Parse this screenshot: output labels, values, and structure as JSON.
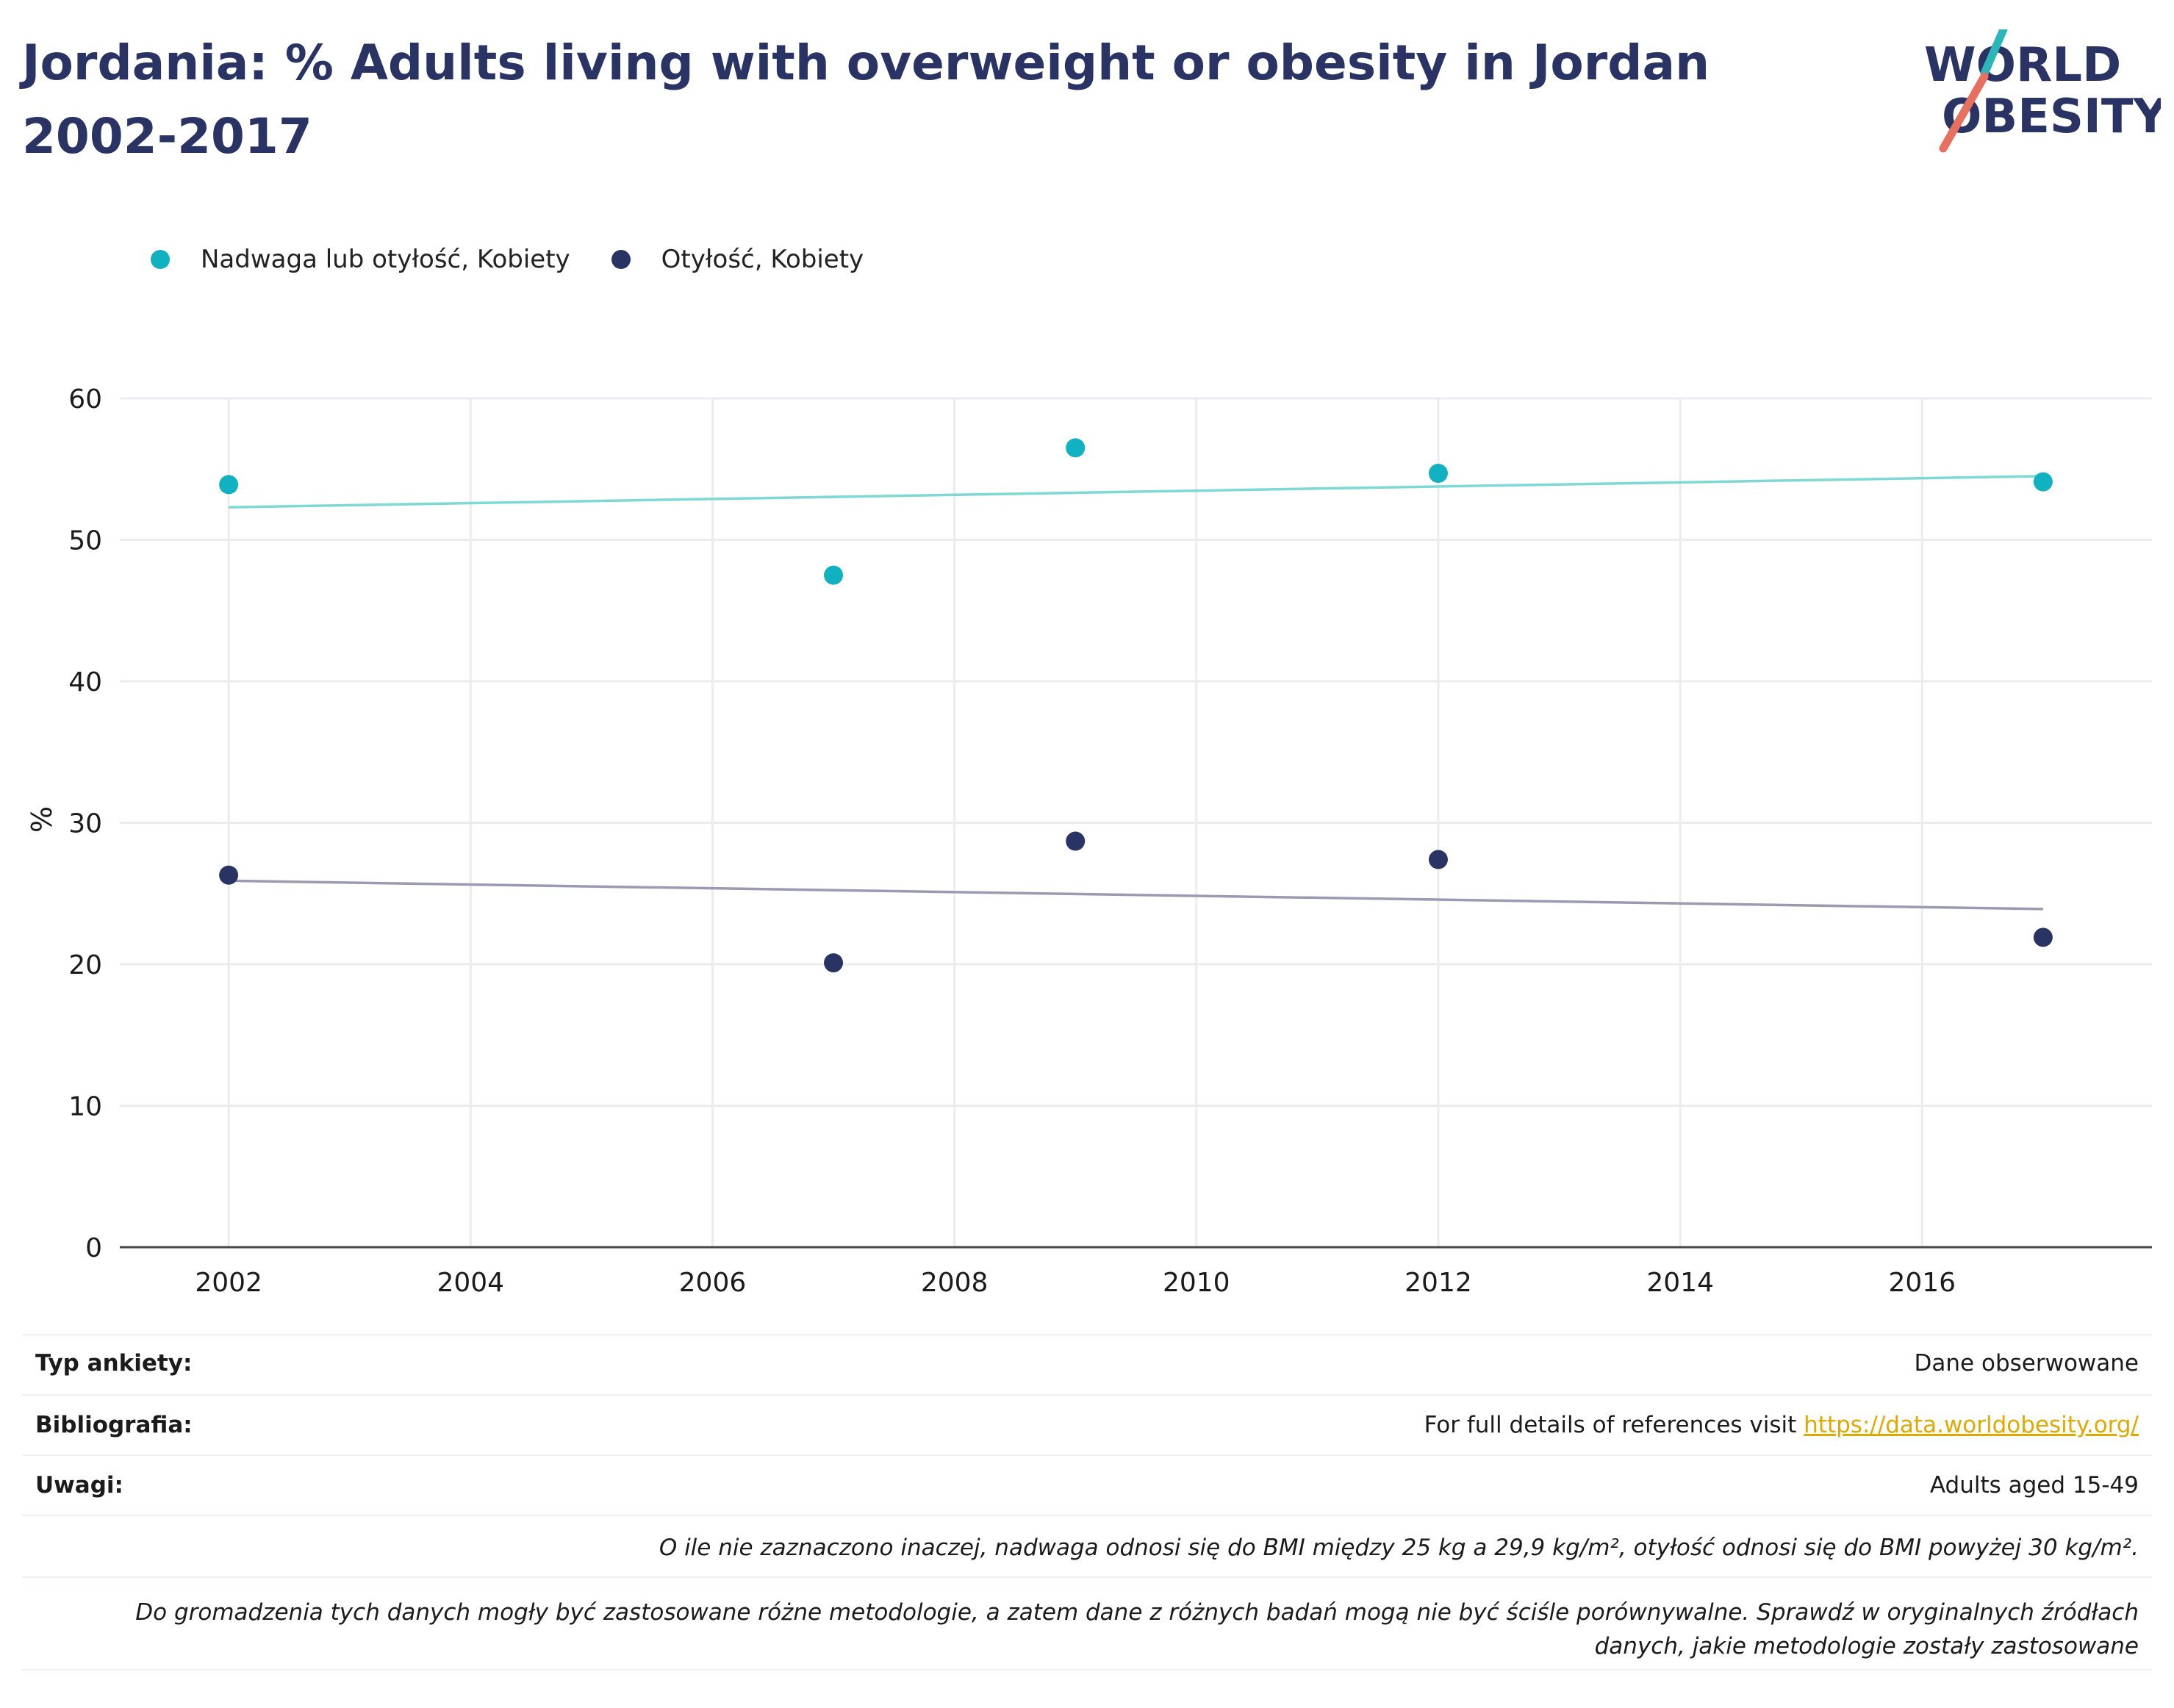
{
  "title": "Jordania: % Adults living with overweight or obesity in Jordan 2002-2017",
  "logo": {
    "line1": "WORLD",
    "line2": "OBESITY"
  },
  "colors": {
    "title": "#2a3464",
    "series1": "#10b1c1",
    "series2": "#2a3464",
    "trend1": "#7ed8d4",
    "trend2": "#9a9ab2",
    "link": "#e0a800"
  },
  "chart_data": {
    "type": "scatter",
    "title": "Jordania: % Adults living with overweight or obesity in Jordan 2002-2017",
    "xlabel": "",
    "ylabel": "%",
    "xlim": [
      2001.1,
      2017.9
    ],
    "ylim": [
      0,
      60
    ],
    "xticks": [
      2002,
      2004,
      2006,
      2008,
      2010,
      2012,
      2014,
      2016
    ],
    "yticks": [
      0,
      10,
      20,
      30,
      40,
      50,
      60
    ],
    "grid": true,
    "legend": "top-left",
    "series": [
      {
        "name": "Nadwaga lub otyłość, Kobiety",
        "x": [
          2002,
          2007,
          2009,
          2012,
          2017
        ],
        "y": [
          53.9,
          47.5,
          56.5,
          54.7,
          54.1
        ],
        "trend": {
          "x": [
            2002,
            2017
          ],
          "y": [
            52.3,
            54.5
          ]
        }
      },
      {
        "name": "Otyłość, Kobiety",
        "x": [
          2002,
          2007,
          2009,
          2012,
          2017
        ],
        "y": [
          26.3,
          20.1,
          28.7,
          27.4,
          21.9
        ],
        "trend": {
          "x": [
            2002,
            2017
          ],
          "y": [
            25.9,
            23.9
          ]
        }
      }
    ]
  },
  "meta": {
    "survey_type_label": "Typ ankiety:",
    "survey_type_value": "Dane obserwowane",
    "bibliography_label": "Bibliografia:",
    "bibliography_text": "For full details of references visit ",
    "bibliography_link": "https://data.worldobesity.org/",
    "notes_label": "Uwagi:",
    "notes_value": "Adults aged 15-49",
    "note_bmi": "O ile nie zaznaczono inaczej, nadwaga odnosi się do BMI między 25 kg a 29,9 kg/m², otyłość odnosi się do BMI powyżej 30 kg/m².",
    "note_method_line1": "Do gromadzenia tych danych mogły być zastosowane różne metodologie, a zatem dane z różnych badań mogą nie być ściśle porównywalne. Sprawdź w oryginalnych źródłach",
    "note_method_line2": "danych, jakie metodologie zostały zastosowane"
  }
}
